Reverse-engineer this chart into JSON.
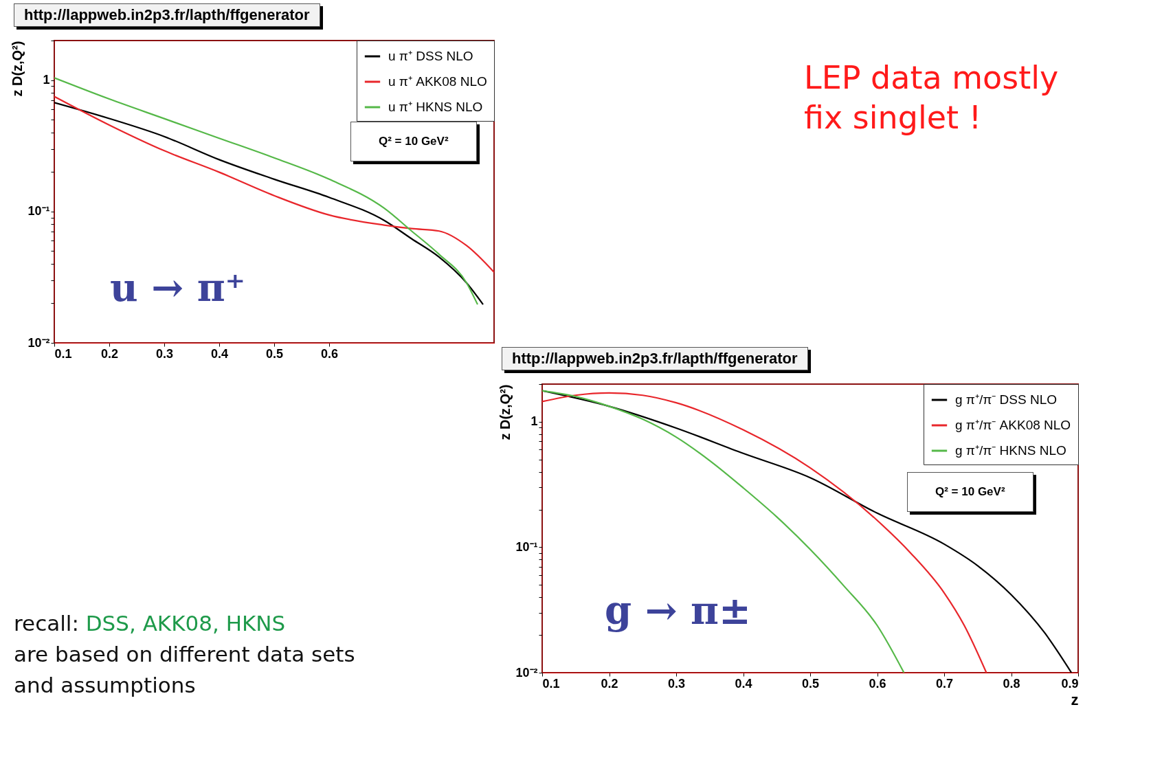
{
  "chart_data": [
    {
      "type": "line",
      "title": "http://lappweb.in2p3.fr/lapth/ffgenerator",
      "ylabel": "z D(z,Q²)",
      "log": "y",
      "legend": "top right",
      "xlim": [
        0.1,
        0.9
      ],
      "xticks": [
        0.1,
        0.2,
        0.3,
        0.4,
        0.5,
        0.6
      ],
      "ylim": [
        0.01,
        2
      ],
      "yticks": [
        {
          "value": 0.01,
          "label": "10⁻²"
        },
        {
          "value": 0.02,
          "label": null
        },
        {
          "value": 0.03,
          "label": null
        },
        {
          "value": 0.04,
          "label": null
        },
        {
          "value": 0.05,
          "label": null
        },
        {
          "value": 0.06,
          "label": null
        },
        {
          "value": 0.07,
          "label": null
        },
        {
          "value": 0.08,
          "label": null
        },
        {
          "value": 0.09,
          "label": null
        },
        {
          "value": 0.1,
          "label": "10⁻¹"
        },
        {
          "value": 0.2,
          "label": null
        },
        {
          "value": 0.3,
          "label": null
        },
        {
          "value": 0.4,
          "label": null
        },
        {
          "value": 0.5,
          "label": null
        },
        {
          "value": 0.6,
          "label": null
        },
        {
          "value": 0.7,
          "label": null
        },
        {
          "value": 0.8,
          "label": null
        },
        {
          "value": 0.9,
          "label": null
        },
        1,
        {
          "value": 2,
          "label": null
        }
      ],
      "series": [
        {
          "name": "u π⁺ DSS NLO",
          "color": "#000000",
          "x": [
            0.1,
            0.2,
            0.3,
            0.4,
            0.5,
            0.6,
            0.7,
            0.75,
            0.8,
            0.85,
            0.88
          ],
          "values": [
            0.674,
            0.51,
            0.372,
            0.248,
            0.176,
            0.128,
            0.0855,
            0.062,
            0.045,
            0.0286,
            0.0196
          ]
        },
        {
          "name": "u π⁺ AKK08 NLO",
          "color": "#e8262b",
          "x": [
            0.1,
            0.2,
            0.3,
            0.4,
            0.5,
            0.6,
            0.7,
            0.75,
            0.8,
            0.85,
            0.9
          ],
          "values": [
            0.75,
            0.455,
            0.29,
            0.199,
            0.132,
            0.094,
            0.0788,
            0.0741,
            0.071,
            0.055,
            0.0345
          ]
        },
        {
          "name": "u π⁺ HKNS NLO",
          "color": "#55b848",
          "x": [
            0.1,
            0.2,
            0.3,
            0.4,
            0.5,
            0.6,
            0.7,
            0.75,
            0.8,
            0.85,
            0.87
          ],
          "values": [
            1.04,
            0.718,
            0.509,
            0.361,
            0.256,
            0.176,
            0.106,
            0.071,
            0.0472,
            0.0286,
            0.0196
          ]
        }
      ],
      "annotations": [
        "Q² = 10 GeV²",
        "u → π⁺",
        "LEP data mostly\nfix singlet !",
        "recall: DSS, AKK08, HKNS\nare based on different data sets\nand assumptions"
      ]
    },
    {
      "type": "line",
      "title": "http://lappweb.in2p3.fr/lapth/ffgenerator",
      "xlabel": "z",
      "ylabel": "z D(z,Q²)",
      "log": "y",
      "legend": "top right",
      "xlim": [
        0.1,
        0.9
      ],
      "xticks": [
        0.1,
        0.2,
        0.3,
        0.4,
        0.5,
        0.6,
        0.7,
        0.8,
        0.9
      ],
      "ylim": [
        0.01,
        2
      ],
      "yticks": [
        {
          "value": 0.01,
          "label": "10⁻²"
        },
        {
          "value": 0.02,
          "label": null
        },
        {
          "value": 0.03,
          "label": null
        },
        {
          "value": 0.04,
          "label": null
        },
        {
          "value": 0.05,
          "label": null
        },
        {
          "value": 0.06,
          "label": null
        },
        {
          "value": 0.07,
          "label": null
        },
        {
          "value": 0.08,
          "label": null
        },
        {
          "value": 0.09,
          "label": null
        },
        {
          "value": 0.1,
          "label": "10⁻¹"
        },
        {
          "value": 0.2,
          "label": null
        },
        {
          "value": 0.3,
          "label": null
        },
        {
          "value": 0.4,
          "label": null
        },
        {
          "value": 0.5,
          "label": null
        },
        {
          "value": 0.6,
          "label": null
        },
        {
          "value": 0.7,
          "label": null
        },
        {
          "value": 0.8,
          "label": null
        },
        {
          "value": 0.9,
          "label": null
        },
        1,
        {
          "value": 2,
          "label": null
        }
      ],
      "series": [
        {
          "name": "g π⁺/π⁻ DSS NLO",
          "color": "#000000",
          "x": [
            0.1,
            0.2,
            0.3,
            0.4,
            0.5,
            0.6,
            0.7,
            0.75,
            0.8,
            0.85,
            0.89
          ],
          "values": [
            1.77,
            1.33,
            0.893,
            0.561,
            0.359,
            0.187,
            0.106,
            0.0713,
            0.0419,
            0.0208,
            0.01
          ]
        },
        {
          "name": "g π⁺/π⁻ AKK08 NLO",
          "color": "#e8262b",
          "x": [
            0.1,
            0.15,
            0.2,
            0.25,
            0.3,
            0.4,
            0.5,
            0.6,
            0.65,
            0.7,
            0.73,
            0.763
          ],
          "values": [
            1.45,
            1.63,
            1.7,
            1.63,
            1.42,
            0.864,
            0.43,
            0.164,
            0.0899,
            0.0433,
            0.0238,
            0.01
          ]
        },
        {
          "name": "g π⁺/π⁻ HKNS NLO",
          "color": "#55b848",
          "x": [
            0.1,
            0.15,
            0.2,
            0.25,
            0.3,
            0.35,
            0.4,
            0.45,
            0.5,
            0.55,
            0.6,
            0.64
          ],
          "values": [
            1.77,
            1.59,
            1.33,
            1.05,
            0.756,
            0.491,
            0.298,
            0.175,
            0.0962,
            0.0494,
            0.0238,
            0.01
          ]
        }
      ],
      "annotations": [
        "Q² = 10 GeV²",
        "g → π±"
      ]
    }
  ]
}
